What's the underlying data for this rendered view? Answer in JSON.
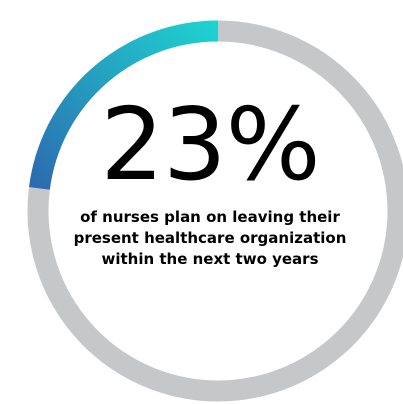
{
  "chart_data": {
    "type": "pie",
    "style": "donut",
    "value_percent": 23,
    "headline": "23%",
    "caption": "of nurses plan on leaving their present healthcare organization within the next two years",
    "colors": {
      "highlight_start": "#2b6cb0",
      "highlight_end": "#1fd1cf",
      "remainder": "#c6c7c9"
    }
  }
}
